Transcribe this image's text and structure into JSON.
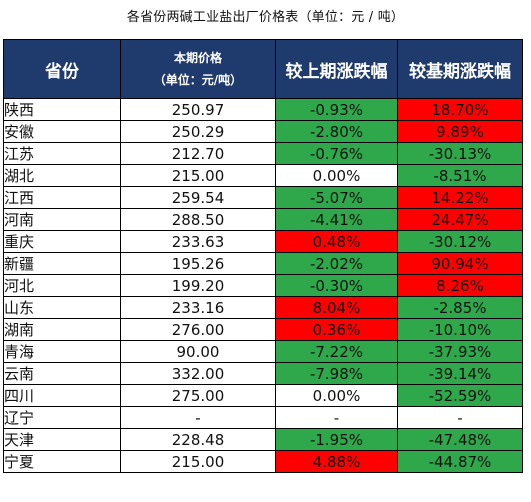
{
  "title": "各省份两碱工业盐出厂价格表（单位：元 / 吨）",
  "headers": {
    "province": "省份",
    "price_line1": "本期价格",
    "price_line2": "（单位：元/吨）",
    "vs_last": "较上期涨跌幅",
    "vs_base": "较基期涨跌幅"
  },
  "colors": {
    "header_bg": "#1f3a6d",
    "up": "#ff0000",
    "down": "#2ea84b",
    "flat": "#ffffff"
  },
  "rows": [
    {
      "province": "陕西",
      "price": "250.97",
      "vs_last": "-0.93%",
      "vs_last_dir": "down",
      "vs_base": "18.70%",
      "vs_base_dir": "up"
    },
    {
      "province": "安徽",
      "price": "250.29",
      "vs_last": "-2.80%",
      "vs_last_dir": "down",
      "vs_base": "9.89%",
      "vs_base_dir": "up"
    },
    {
      "province": "江苏",
      "price": "212.70",
      "vs_last": "-0.76%",
      "vs_last_dir": "down",
      "vs_base": "-30.13%",
      "vs_base_dir": "down"
    },
    {
      "province": "湖北",
      "price": "215.00",
      "vs_last": "0.00%",
      "vs_last_dir": "flat",
      "vs_base": "-8.51%",
      "vs_base_dir": "down"
    },
    {
      "province": "江西",
      "price": "259.54",
      "vs_last": "-5.07%",
      "vs_last_dir": "down",
      "vs_base": "14.22%",
      "vs_base_dir": "up"
    },
    {
      "province": "河南",
      "price": "288.50",
      "vs_last": "-4.41%",
      "vs_last_dir": "down",
      "vs_base": "24.47%",
      "vs_base_dir": "up"
    },
    {
      "province": "重庆",
      "price": "233.63",
      "vs_last": "0.48%",
      "vs_last_dir": "up",
      "vs_base": "-30.12%",
      "vs_base_dir": "down"
    },
    {
      "province": "新疆",
      "price": "195.26",
      "vs_last": "-2.02%",
      "vs_last_dir": "down",
      "vs_base": "90.94%",
      "vs_base_dir": "up"
    },
    {
      "province": "河北",
      "price": "199.20",
      "vs_last": "-0.30%",
      "vs_last_dir": "down",
      "vs_base": "8.26%",
      "vs_base_dir": "up"
    },
    {
      "province": "山东",
      "price": "233.16",
      "vs_last": "8.04%",
      "vs_last_dir": "up",
      "vs_base": "-2.85%",
      "vs_base_dir": "down"
    },
    {
      "province": "湖南",
      "price": "276.00",
      "vs_last": "0.36%",
      "vs_last_dir": "up",
      "vs_base": "-10.10%",
      "vs_base_dir": "down"
    },
    {
      "province": "青海",
      "price": "90.00",
      "vs_last": "-7.22%",
      "vs_last_dir": "down",
      "vs_base": "-37.93%",
      "vs_base_dir": "down"
    },
    {
      "province": "云南",
      "price": "332.00",
      "vs_last": "-7.98%",
      "vs_last_dir": "down",
      "vs_base": "-39.14%",
      "vs_base_dir": "down"
    },
    {
      "province": "四川",
      "price": "275.00",
      "vs_last": "0.00%",
      "vs_last_dir": "flat",
      "vs_base": "-52.59%",
      "vs_base_dir": "down"
    },
    {
      "province": "辽宁",
      "price": "-",
      "vs_last": "-",
      "vs_last_dir": "flat",
      "vs_base": "-",
      "vs_base_dir": "flat"
    },
    {
      "province": "天津",
      "price": "228.48",
      "vs_last": "-1.95%",
      "vs_last_dir": "down",
      "vs_base": "-47.48%",
      "vs_base_dir": "down"
    },
    {
      "province": "宁夏",
      "price": "215.00",
      "vs_last": "4.88%",
      "vs_last_dir": "up",
      "vs_base": "-44.87%",
      "vs_base_dir": "down"
    }
  ]
}
